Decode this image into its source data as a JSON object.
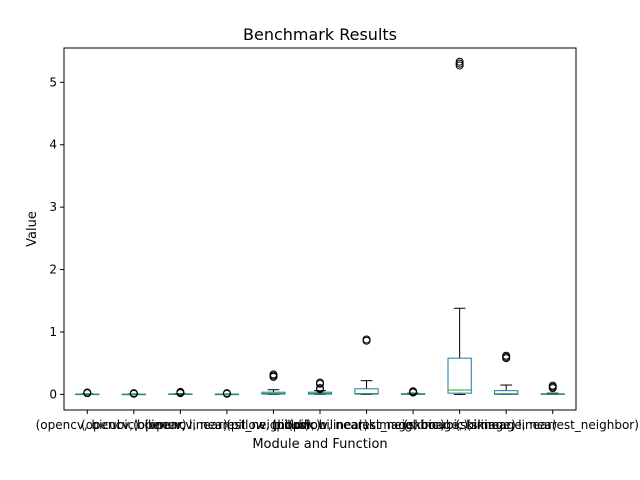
{
  "chart_data": {
    "type": "box",
    "title": "Benchmark Results",
    "xlabel": "Module and Function",
    "ylabel": "Value",
    "ylim": [
      -0.25,
      5.55
    ],
    "yticks": [
      0,
      1,
      2,
      3,
      4,
      5
    ],
    "grid": false,
    "colors": {
      "box": "#1f77b4",
      "median": "#2ca02c",
      "whisker": "#000000",
      "flier": "#000000"
    },
    "categories": [
      "(opencv, bicubic)",
      "(opencv, bilinear)",
      "(opencv, linear)",
      "(opencv, nearest_neighbor)",
      "(pillow, bicubic)",
      "(pillow, bilinear)",
      "(pillow, nearest_neighbor)",
      "(skimage, bicubic)",
      "(skimage, bilinear)",
      "(skimage, linear)",
      "(skimage, nearest_neighbor)"
    ],
    "boxes": [
      {
        "whislo": 0.0,
        "q1": 0.0,
        "med": 0.003,
        "q3": 0.006,
        "whishi": 0.01,
        "fliers": [
          0.02,
          0.025,
          0.03
        ]
      },
      {
        "whislo": 0.0,
        "q1": 0.0,
        "med": 0.002,
        "q3": 0.004,
        "whishi": 0.008,
        "fliers": [
          0.01,
          0.015,
          0.02
        ]
      },
      {
        "whislo": 0.0,
        "q1": 0.0,
        "med": 0.003,
        "q3": 0.008,
        "whishi": 0.012,
        "fliers": [
          0.02,
          0.03,
          0.04
        ]
      },
      {
        "whislo": 0.0,
        "q1": 0.0,
        "med": 0.002,
        "q3": 0.005,
        "whishi": 0.008,
        "fliers": [
          0.01,
          0.02
        ]
      },
      {
        "whislo": 0.0,
        "q1": 0.005,
        "med": 0.015,
        "q3": 0.035,
        "whishi": 0.075,
        "fliers": [
          0.28,
          0.3,
          0.32
        ]
      },
      {
        "whislo": 0.0,
        "q1": 0.005,
        "med": 0.015,
        "q3": 0.035,
        "whishi": 0.06,
        "fliers": [
          0.08,
          0.1,
          0.17,
          0.19
        ]
      },
      {
        "whislo": 0.0,
        "q1": 0.005,
        "med": 0.015,
        "q3": 0.09,
        "whishi": 0.22,
        "fliers": [
          0.86,
          0.88
        ]
      },
      {
        "whislo": 0.0,
        "q1": 0.0,
        "med": 0.005,
        "q3": 0.012,
        "whishi": 0.02,
        "fliers": [
          0.03,
          0.04,
          0.05
        ]
      },
      {
        "whislo": 0.0,
        "q1": 0.02,
        "med": 0.07,
        "q3": 0.58,
        "whishi": 1.38,
        "fliers": [
          5.27,
          5.3,
          5.33
        ]
      },
      {
        "whislo": 0.0,
        "q1": 0.0,
        "med": 0.01,
        "q3": 0.06,
        "whishi": 0.15,
        "fliers": [
          0.58,
          0.6,
          0.62
        ]
      },
      {
        "whislo": 0.0,
        "q1": 0.0,
        "med": 0.004,
        "q3": 0.01,
        "whishi": 0.02,
        "fliers": [
          0.1,
          0.12,
          0.14
        ]
      }
    ]
  }
}
